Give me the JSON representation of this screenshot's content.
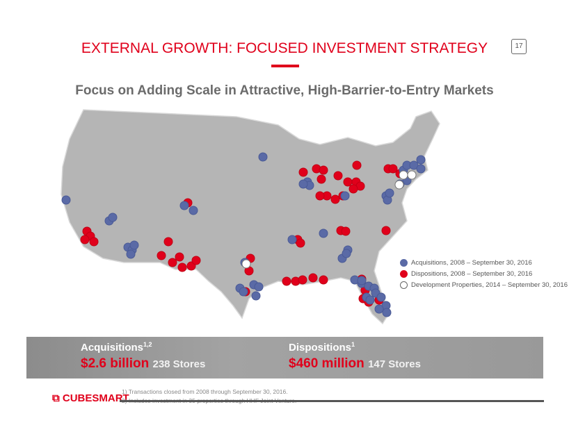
{
  "header": {
    "title": "EXTERNAL GROWTH: FOCUSED INVESTMENT STRATEGY",
    "page_number": "17",
    "subtitle": "Focus on Adding Scale in Attractive, High-Barrier-to-Entry Markets"
  },
  "legend": [
    {
      "label": "Acquisitions, 2008 – September 30, 2016",
      "color": "#5a6aa6"
    },
    {
      "label": "Dispositions, 2008 – September 30, 2016",
      "color": "#e0001b"
    },
    {
      "label": "Development Properties, 2014 – September 30, 2016",
      "color": "#ffffff"
    }
  ],
  "summary": {
    "acq": {
      "heading": "Acquisitions",
      "sup": "1,2",
      "amount": "$2.6 billion",
      "stores": "238 Stores"
    },
    "disp": {
      "heading": "Dispositions",
      "sup": "1",
      "amount": "$460 million",
      "stores": "147 Stores"
    }
  },
  "footer": {
    "logo": "CUBESMART",
    "notes": [
      "1) Transactions closed from 2008 through September 30, 2016.",
      "2) Includes investment in 35 properties through HHF Joint Venture."
    ]
  }
}
